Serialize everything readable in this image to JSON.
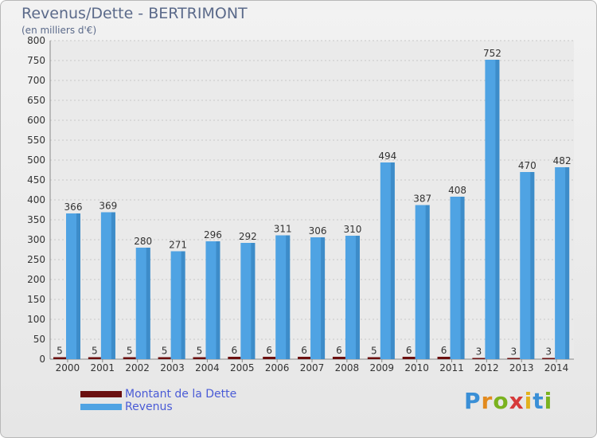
{
  "chart_data": {
    "type": "bar",
    "title": "Revenus/Dette - BERTRIMONT",
    "subtitle": "(en milliers d'€)",
    "categories": [
      "2000",
      "2001",
      "2002",
      "2003",
      "2004",
      "2005",
      "2006",
      "2007",
      "2008",
      "2009",
      "2010",
      "2011",
      "2012",
      "2013",
      "2014"
    ],
    "series": [
      {
        "name": "Montant de la Dette",
        "color": "#6b0f0f",
        "values": [
          5,
          5,
          5,
          5,
          5,
          6,
          6,
          6,
          6,
          5,
          6,
          6,
          3,
          3,
          3
        ]
      },
      {
        "name": "Revenus",
        "color": "#4fa3e3",
        "values": [
          366,
          369,
          280,
          271,
          296,
          292,
          311,
          306,
          310,
          494,
          387,
          408,
          752,
          470,
          482
        ]
      }
    ],
    "ylim": [
      0,
      800
    ],
    "yticks": [
      0,
      50,
      100,
      150,
      200,
      250,
      300,
      350,
      400,
      450,
      500,
      550,
      600,
      650,
      700,
      750,
      800
    ],
    "grid": true,
    "legend_position": "bottom-left"
  },
  "brand": {
    "letters": [
      "P",
      "r",
      "o",
      "x",
      "i",
      "t",
      "i"
    ],
    "colors": [
      "#3a8fd6",
      "#e28a1e",
      "#7ab21e",
      "#d63a3a",
      "#e2b21e",
      "#3a8fd6",
      "#7ab21e"
    ]
  }
}
